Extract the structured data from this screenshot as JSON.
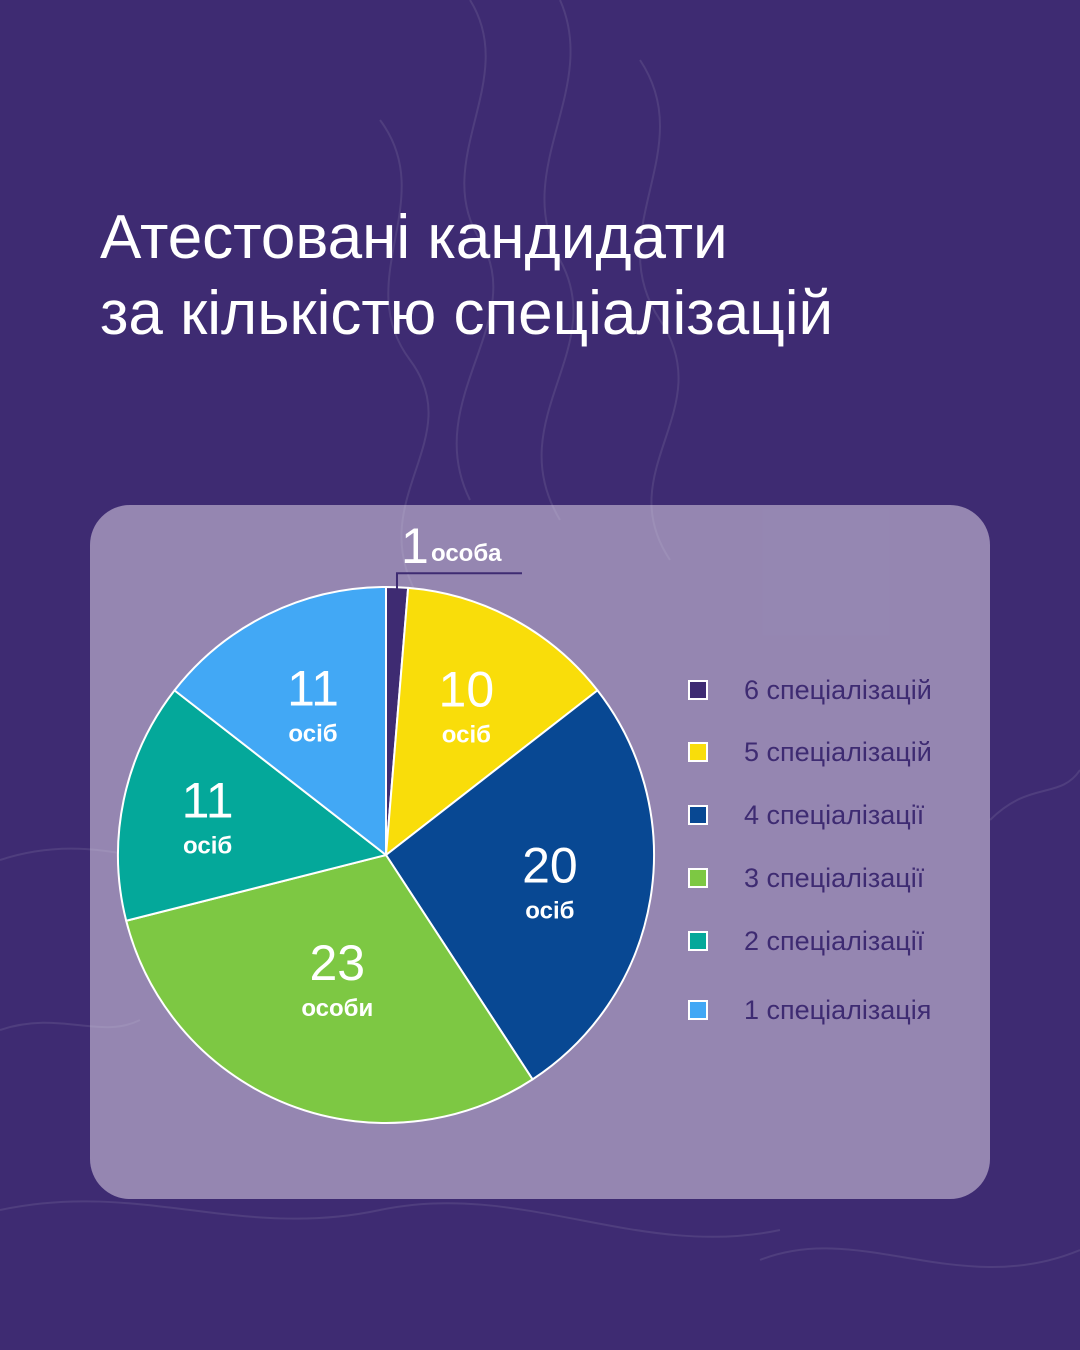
{
  "title_lines": [
    "Атестовані кандидати",
    "за кількістю спеціалізацій"
  ],
  "colors": {
    "background": "#3e2b72",
    "card": "rgba(220,210,230,0.55)",
    "slice_6": "#3e2b72",
    "slice_5": "#f9dd0a",
    "slice_4": "#084893",
    "slice_3": "#7dc843",
    "slice_2": "#04a89a",
    "slice_1": "#42a8f5"
  },
  "chart_data": {
    "type": "pie",
    "title": "Атестовані кандидати за кількістю спеціалізацій",
    "slices": [
      {
        "label": "6 спеціалізацій",
        "value": 1,
        "value_text": "1",
        "unit_text": "особа",
        "color": "#3e2b72"
      },
      {
        "label": "5 спеціалізацій",
        "value": 10,
        "value_text": "10",
        "unit_text": "осіб",
        "color": "#f9dd0a"
      },
      {
        "label": "4 спеціалізації",
        "value": 20,
        "value_text": "20",
        "unit_text": "осіб",
        "color": "#084893"
      },
      {
        "label": "3 спеціалізації",
        "value": 23,
        "value_text": "23",
        "unit_text": "особи",
        "color": "#7dc843"
      },
      {
        "label": "2 спеціалізації",
        "value": 11,
        "value_text": "11",
        "unit_text": "осіб",
        "color": "#04a89a"
      },
      {
        "label": "1 спеціалізація",
        "value": 11,
        "value_text": "11",
        "unit_text": "осіб",
        "color": "#42a8f5"
      }
    ],
    "legend": "right"
  }
}
